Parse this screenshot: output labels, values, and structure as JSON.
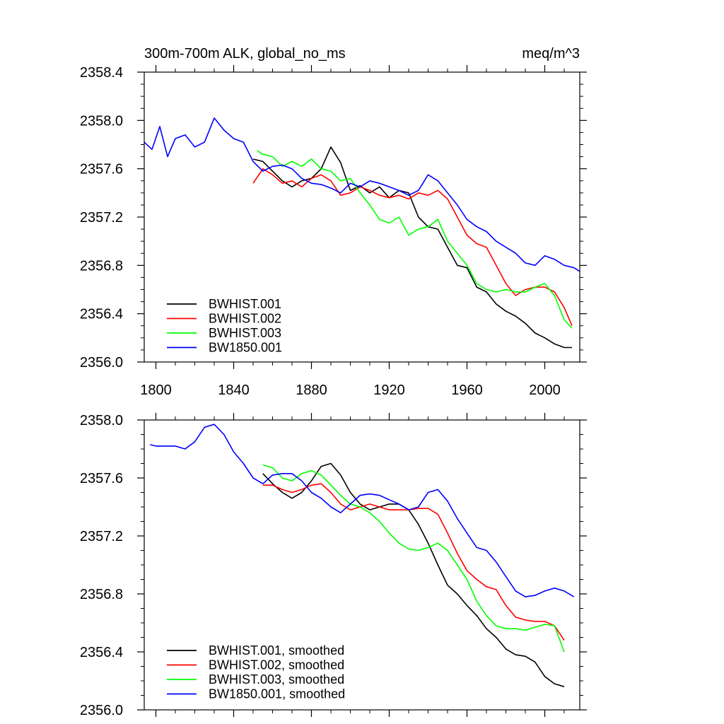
{
  "colors": {
    "black": "#000000",
    "red": "#ff0000",
    "green": "#00ff00",
    "blue": "#0000ff"
  },
  "chart_data": [
    {
      "id": "top",
      "type": "line",
      "title_left": "300m-700m ALK, global_no_ms",
      "title_right": "meq/m^3",
      "xlabel": "",
      "ylabel": "",
      "xlim": [
        1794,
        2018
      ],
      "ylim": [
        2356.0,
        2358.4
      ],
      "xticks": [
        1800,
        1840,
        1880,
        1920,
        1960,
        2000
      ],
      "xtick_labels": [
        "1800",
        "1840",
        "1880",
        "1920",
        "1960",
        "2000"
      ],
      "yticks": [
        2356.0,
        2356.4,
        2356.8,
        2357.2,
        2357.6,
        2358.0,
        2358.4
      ],
      "ytick_labels": [
        "2356.0",
        "2356.4",
        "2356.8",
        "2357.2",
        "2357.6",
        "2358.0",
        "2358.4"
      ],
      "legend_position": "bottom-left",
      "series": [
        {
          "name": "BWHIST.001",
          "color": "#000000",
          "x": [
            1850,
            1855,
            1860,
            1865,
            1870,
            1875,
            1880,
            1885,
            1890,
            1895,
            1900,
            1905,
            1910,
            1915,
            1920,
            1925,
            1930,
            1935,
            1940,
            1945,
            1950,
            1955,
            1960,
            1965,
            1970,
            1975,
            1980,
            1985,
            1990,
            1995,
            2000,
            2005,
            2010,
            2014
          ],
          "y": [
            2357.68,
            2357.66,
            2357.58,
            2357.5,
            2357.45,
            2357.5,
            2357.52,
            2357.6,
            2357.78,
            2357.65,
            2357.42,
            2357.46,
            2357.4,
            2357.45,
            2357.36,
            2357.42,
            2357.4,
            2357.2,
            2357.12,
            2357.1,
            2356.95,
            2356.8,
            2356.78,
            2356.62,
            2356.58,
            2356.48,
            2356.42,
            2356.38,
            2356.32,
            2356.24,
            2356.2,
            2356.15,
            2356.12,
            2356.12
          ]
        },
        {
          "name": "BWHIST.002",
          "color": "#ff0000",
          "x": [
            1850,
            1855,
            1860,
            1865,
            1870,
            1875,
            1880,
            1885,
            1890,
            1895,
            1900,
            1905,
            1910,
            1915,
            1920,
            1925,
            1930,
            1935,
            1940,
            1945,
            1950,
            1955,
            1960,
            1965,
            1970,
            1975,
            1980,
            1985,
            1990,
            1995,
            2000,
            2005,
            2010,
            2014
          ],
          "y": [
            2357.48,
            2357.6,
            2357.55,
            2357.48,
            2357.5,
            2357.45,
            2357.52,
            2357.55,
            2357.5,
            2357.38,
            2357.4,
            2357.45,
            2357.42,
            2357.38,
            2357.36,
            2357.38,
            2357.35,
            2357.4,
            2357.38,
            2357.42,
            2357.35,
            2357.2,
            2357.05,
            2356.98,
            2356.95,
            2356.8,
            2356.65,
            2356.55,
            2356.6,
            2356.62,
            2356.62,
            2356.58,
            2356.45,
            2356.3
          ]
        },
        {
          "name": "BWHIST.003",
          "color": "#00ff00",
          "x": [
            1852,
            1855,
            1860,
            1865,
            1870,
            1875,
            1880,
            1885,
            1890,
            1895,
            1900,
            1905,
            1910,
            1915,
            1920,
            1925,
            1930,
            1935,
            1940,
            1945,
            1950,
            1955,
            1960,
            1965,
            1970,
            1975,
            1980,
            1985,
            1990,
            1995,
            2000,
            2005,
            2010,
            2014
          ],
          "y": [
            2357.75,
            2357.72,
            2357.7,
            2357.62,
            2357.66,
            2357.62,
            2357.68,
            2357.6,
            2357.58,
            2357.5,
            2357.52,
            2357.4,
            2357.3,
            2357.18,
            2357.15,
            2357.2,
            2357.05,
            2357.1,
            2357.12,
            2357.18,
            2357.0,
            2356.9,
            2356.8,
            2356.65,
            2356.6,
            2356.58,
            2356.6,
            2356.58,
            2356.58,
            2356.62,
            2356.65,
            2356.55,
            2356.35,
            2356.28
          ]
        },
        {
          "name": "BW1850.001",
          "color": "#0000ff",
          "x": [
            1794,
            1798,
            1802,
            1806,
            1810,
            1815,
            1820,
            1825,
            1830,
            1835,
            1840,
            1845,
            1850,
            1855,
            1860,
            1865,
            1870,
            1875,
            1880,
            1885,
            1890,
            1895,
            1900,
            1905,
            1910,
            1915,
            1920,
            1925,
            1930,
            1935,
            1940,
            1945,
            1950,
            1955,
            1960,
            1965,
            1970,
            1975,
            1980,
            1985,
            1990,
            1995,
            2000,
            2005,
            2010,
            2015,
            2018
          ],
          "y": [
            2357.82,
            2357.76,
            2357.95,
            2357.7,
            2357.85,
            2357.88,
            2357.78,
            2357.82,
            2358.02,
            2357.92,
            2357.85,
            2357.82,
            2357.66,
            2357.58,
            2357.62,
            2357.63,
            2357.6,
            2357.52,
            2357.48,
            2357.47,
            2357.44,
            2357.4,
            2357.48,
            2357.45,
            2357.5,
            2357.48,
            2357.45,
            2357.42,
            2357.38,
            2357.42,
            2357.55,
            2357.5,
            2357.4,
            2357.3,
            2357.18,
            2357.12,
            2357.08,
            2357.0,
            2356.95,
            2356.9,
            2356.82,
            2356.8,
            2356.88,
            2356.85,
            2356.8,
            2356.78,
            2356.75
          ]
        }
      ]
    },
    {
      "id": "bottom",
      "type": "line",
      "title_left": "",
      "title_right": "",
      "xlabel": "",
      "ylabel": "",
      "xlim": [
        1794,
        2018
      ],
      "ylim": [
        2356.0,
        2358.0
      ],
      "xticks": [
        1800,
        1840,
        1880,
        1920,
        1960,
        2000
      ],
      "xtick_labels": [],
      "yticks": [
        2356.0,
        2356.4,
        2356.8,
        2357.2,
        2357.6,
        2358.0
      ],
      "ytick_labels": [
        "2356.0",
        "2356.4",
        "2356.8",
        "2357.2",
        "2357.6",
        "2358.0"
      ],
      "legend_position": "bottom-left",
      "series": [
        {
          "name": "BWHIST.001, smoothed",
          "color": "#000000",
          "x": [
            1855,
            1860,
            1865,
            1870,
            1875,
            1880,
            1885,
            1890,
            1895,
            1900,
            1905,
            1910,
            1915,
            1920,
            1925,
            1930,
            1935,
            1940,
            1945,
            1950,
            1955,
            1960,
            1965,
            1970,
            1975,
            1980,
            1985,
            1990,
            1995,
            2000,
            2005,
            2010
          ],
          "y": [
            2357.63,
            2357.56,
            2357.5,
            2357.46,
            2357.5,
            2357.58,
            2357.68,
            2357.7,
            2357.62,
            2357.5,
            2357.42,
            2357.38,
            2357.4,
            2357.42,
            2357.42,
            2357.38,
            2357.28,
            2357.15,
            2357.0,
            2356.86,
            2356.8,
            2356.72,
            2356.65,
            2356.56,
            2356.5,
            2356.42,
            2356.38,
            2356.37,
            2356.33,
            2356.23,
            2356.18,
            2356.16
          ]
        },
        {
          "name": "BWHIST.002, smoothed",
          "color": "#ff0000",
          "x": [
            1855,
            1860,
            1865,
            1870,
            1875,
            1880,
            1885,
            1890,
            1895,
            1900,
            1905,
            1910,
            1915,
            1920,
            1925,
            1930,
            1935,
            1940,
            1945,
            1950,
            1955,
            1960,
            1965,
            1970,
            1975,
            1980,
            1985,
            1990,
            1995,
            2000,
            2005,
            2010
          ],
          "y": [
            2357.55,
            2357.55,
            2357.52,
            2357.5,
            2357.52,
            2357.55,
            2357.56,
            2357.5,
            2357.42,
            2357.38,
            2357.4,
            2357.42,
            2357.4,
            2357.38,
            2357.38,
            2357.38,
            2357.39,
            2357.39,
            2357.35,
            2357.22,
            2357.08,
            2356.96,
            2356.9,
            2356.85,
            2356.83,
            2356.72,
            2356.64,
            2356.62,
            2356.61,
            2356.61,
            2356.58,
            2356.48
          ]
        },
        {
          "name": "BWHIST.003, smoothed",
          "color": "#00ff00",
          "x": [
            1855,
            1860,
            1865,
            1870,
            1875,
            1880,
            1885,
            1890,
            1895,
            1900,
            1905,
            1910,
            1915,
            1920,
            1925,
            1930,
            1935,
            1940,
            1945,
            1950,
            1955,
            1960,
            1965,
            1970,
            1975,
            1980,
            1985,
            1990,
            1995,
            2000,
            2005,
            2010
          ],
          "y": [
            2357.69,
            2357.67,
            2357.6,
            2357.58,
            2357.63,
            2357.65,
            2357.62,
            2357.55,
            2357.48,
            2357.42,
            2357.4,
            2357.36,
            2357.3,
            2357.22,
            2357.15,
            2357.11,
            2357.1,
            2357.12,
            2357.15,
            2357.1,
            2357.0,
            2356.9,
            2356.75,
            2356.65,
            2356.58,
            2356.56,
            2356.56,
            2356.55,
            2356.57,
            2356.59,
            2356.58,
            2356.4
          ]
        },
        {
          "name": "BW1850.001, smoothed",
          "color": "#0000ff",
          "x": [
            1797,
            1800,
            1805,
            1810,
            1815,
            1820,
            1825,
            1830,
            1835,
            1840,
            1845,
            1850,
            1855,
            1860,
            1865,
            1870,
            1875,
            1880,
            1885,
            1890,
            1895,
            1900,
            1905,
            1910,
            1915,
            1920,
            1925,
            1930,
            1935,
            1940,
            1945,
            1950,
            1955,
            1960,
            1965,
            1970,
            1975,
            1980,
            1985,
            1990,
            1995,
            2000,
            2005,
            2010,
            2015
          ],
          "y": [
            2357.83,
            2357.82,
            2357.82,
            2357.82,
            2357.8,
            2357.85,
            2357.95,
            2357.97,
            2357.9,
            2357.78,
            2357.7,
            2357.6,
            2357.56,
            2357.62,
            2357.63,
            2357.63,
            2357.58,
            2357.5,
            2357.46,
            2357.4,
            2357.36,
            2357.42,
            2357.48,
            2357.49,
            2357.48,
            2357.45,
            2357.42,
            2357.38,
            2357.4,
            2357.5,
            2357.52,
            2357.44,
            2357.32,
            2357.22,
            2357.12,
            2357.1,
            2357.02,
            2356.92,
            2356.82,
            2356.78,
            2356.79,
            2356.82,
            2356.84,
            2356.82,
            2356.78
          ]
        }
      ]
    }
  ]
}
